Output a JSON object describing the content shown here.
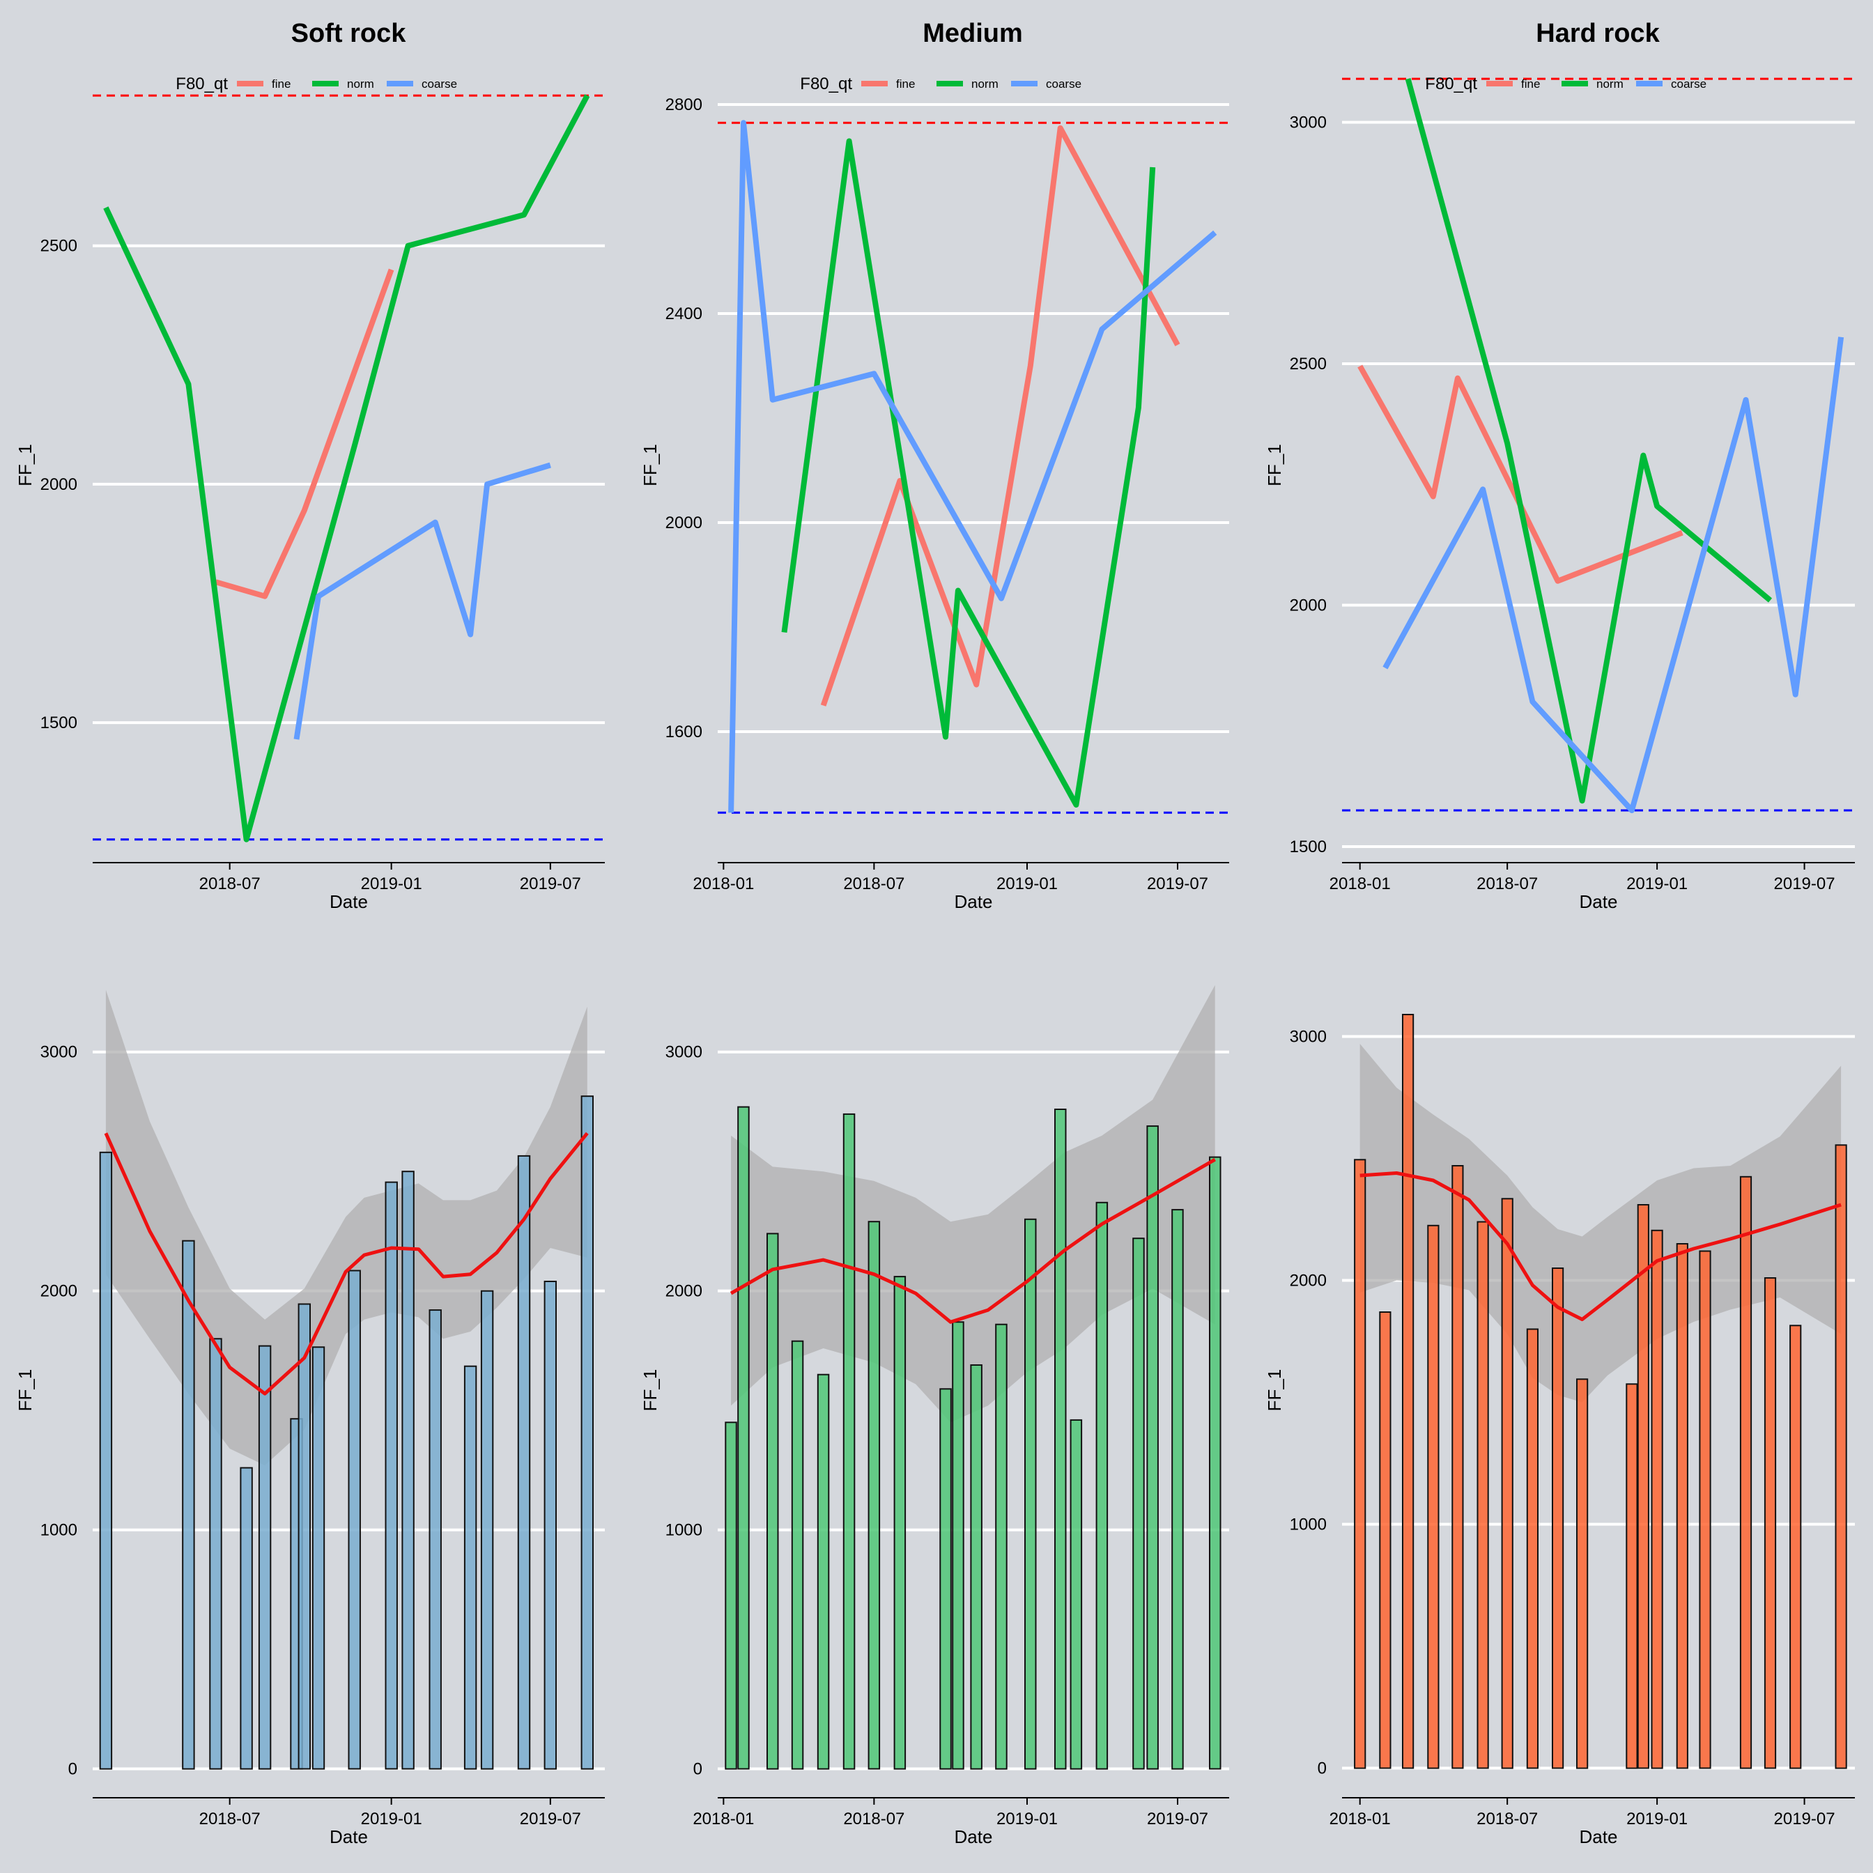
{
  "colors": {
    "background": "#d5d8dd",
    "grid": "#ffffff",
    "fine": "#f8766d",
    "norm": "#00ba38",
    "coarse": "#619cff",
    "upper_ref": "#ff0000",
    "lower_ref": "#0000ff",
    "smooth": "#ee1111",
    "ribbon": "#b0b0b0",
    "bar_soft": "#7aaed0",
    "bar_medium": "#50c878",
    "bar_hard": "#ff6633"
  },
  "chart_data": [
    {
      "panel": "top-left",
      "type": "line",
      "title": "Soft rock",
      "xlabel": "Date",
      "ylabel": "FF_1",
      "legend": {
        "title": "F80_qt",
        "entries": [
          "fine",
          "norm",
          "coarse"
        ],
        "placement": "top"
      },
      "x_ticks": [
        "2018-07",
        "2019-01",
        "2019-07"
      ],
      "y_ticks": [
        1500,
        2000,
        2500
      ],
      "xlim": [
        "2018-01-26",
        "2019-09-01"
      ],
      "ylim": [
        1240,
        2840
      ],
      "ref_lines": {
        "upper": 2815,
        "lower": 1255
      },
      "series": [
        {
          "name": "fine",
          "color_key": "fine",
          "x": [
            "2018-06-15",
            "2018-08-10",
            "2018-09-24",
            "2019-01-01"
          ],
          "y": [
            1795,
            1765,
            1945,
            2450
          ]
        },
        {
          "name": "norm",
          "color_key": "norm",
          "x": [
            "2018-02-10",
            "2018-05-15",
            "2018-07-20",
            "2018-11-20",
            "2019-01-20",
            "2019-06-01",
            "2019-08-12"
          ],
          "y": [
            2580,
            2210,
            1255,
            2080,
            2500,
            2565,
            2815
          ]
        },
        {
          "name": "coarse",
          "color_key": "coarse",
          "x": [
            "2018-09-15",
            "2018-10-10",
            "2019-02-20",
            "2019-04-01",
            "2019-04-20",
            "2019-07-01"
          ],
          "y": [
            1465,
            1765,
            1920,
            1685,
            2000,
            2040
          ]
        }
      ]
    },
    {
      "panel": "top-middle",
      "type": "line",
      "title": "Medium",
      "xlabel": "Date",
      "ylabel": "FF_1",
      "legend": {
        "title": "F80_qt",
        "entries": [
          "fine",
          "norm",
          "coarse"
        ],
        "placement": "top"
      },
      "x_ticks": [
        "2018-01",
        "2018-07",
        "2019-01",
        "2019-07"
      ],
      "y_ticks": [
        1600,
        2000,
        2400,
        2800
      ],
      "xlim": [
        "2017-12-25",
        "2019-09-01"
      ],
      "ylim": [
        1380,
        2840
      ],
      "ref_lines": {
        "upper": 2765,
        "lower": 1445
      },
      "series": [
        {
          "name": "fine",
          "color_key": "fine",
          "x": [
            "2018-05-01",
            "2018-08-01",
            "2018-11-01",
            "2019-01-05",
            "2019-02-10",
            "2019-07-01"
          ],
          "y": [
            1650,
            2080,
            1690,
            2300,
            2755,
            2340
          ]
        },
        {
          "name": "norm",
          "color_key": "norm",
          "x": [
            "2018-03-15",
            "2018-06-01",
            "2018-09-25",
            "2018-10-10",
            "2019-03-01",
            "2019-05-15",
            "2019-06-01"
          ],
          "y": [
            1790,
            2730,
            1590,
            1870,
            1460,
            2220,
            2680
          ]
        },
        {
          "name": "coarse",
          "color_key": "coarse",
          "x": [
            "2018-01-10",
            "2018-01-25",
            "2018-03-01",
            "2018-07-01",
            "2018-12-01",
            "2019-04-01",
            "2019-08-15"
          ],
          "y": [
            1445,
            2765,
            2235,
            2285,
            1855,
            2370,
            2555
          ]
        }
      ]
    },
    {
      "panel": "top-right",
      "type": "line",
      "title": "Hard rock",
      "xlabel": "Date",
      "ylabel": "FF_1",
      "legend": {
        "title": "F80_qt",
        "entries": [
          "fine",
          "norm",
          "coarse"
        ],
        "placement": "top"
      },
      "x_ticks": [
        "2018-01",
        "2018-07",
        "2019-01",
        "2019-07"
      ],
      "y_ticks": [
        1500,
        2000,
        2500,
        3000
      ],
      "xlim": [
        "2017-12-10",
        "2019-09-01"
      ],
      "ylim": [
        1500,
        3080
      ],
      "ref_lines": {
        "upper": 3090,
        "lower": 1575
      },
      "series": [
        {
          "name": "fine",
          "color_key": "fine",
          "x": [
            "2018-01-01",
            "2018-04-01",
            "2018-05-01",
            "2018-09-01",
            "2019-02-01"
          ],
          "y": [
            2495,
            2225,
            2470,
            2050,
            2150
          ]
        },
        {
          "name": "norm",
          "color_key": "norm",
          "x": [
            "2018-03-01",
            "2018-07-01",
            "2018-10-01",
            "2018-12-15",
            "2019-01-01",
            "2019-05-20"
          ],
          "y": [
            3090,
            2335,
            1595,
            2310,
            2205,
            2010
          ]
        },
        {
          "name": "coarse",
          "color_key": "coarse",
          "x": [
            "2018-02-01",
            "2018-06-01",
            "2018-08-01",
            "2018-12-01",
            "2019-04-20",
            "2019-06-20",
            "2019-08-15"
          ],
          "y": [
            1870,
            2240,
            1800,
            1575,
            2425,
            1815,
            2555
          ]
        }
      ]
    },
    {
      "panel": "bottom-left",
      "type": "bar",
      "title": "",
      "xlabel": "Date",
      "ylabel": "FF_1",
      "bar_color_key": "bar_soft",
      "x_ticks": [
        "2018-07",
        "2019-01",
        "2019-07"
      ],
      "y_ticks": [
        0,
        1000,
        2000,
        3000
      ],
      "xlim": [
        "2018-01-26",
        "2019-09-01"
      ],
      "ylim": [
        -150,
        3320
      ],
      "bars": {
        "x": [
          "2018-02-10",
          "2018-05-15",
          "2018-06-15",
          "2018-07-20",
          "2018-08-10",
          "2018-09-15",
          "2018-09-24",
          "2018-10-10",
          "2018-11-20",
          "2019-01-01",
          "2019-01-20",
          "2019-02-20",
          "2019-04-01",
          "2019-04-20",
          "2019-06-01",
          "2019-07-01",
          "2019-08-12"
        ],
        "values": [
          2580,
          2210,
          1800,
          1260,
          1770,
          1465,
          1945,
          1765,
          2085,
          2455,
          2500,
          1920,
          1685,
          2000,
          2565,
          2040,
          2815
        ]
      },
      "smooth": {
        "x": [
          "2018-02-10",
          "2018-04-01",
          "2018-05-15",
          "2018-07-01",
          "2018-08-10",
          "2018-09-24",
          "2018-11-10",
          "2018-12-01",
          "2019-01-01",
          "2019-02-01",
          "2019-03-01",
          "2019-04-01",
          "2019-05-01",
          "2019-06-01",
          "2019-07-01",
          "2019-08-12"
        ],
        "y": [
          2660,
          2250,
          1960,
          1680,
          1570,
          1720,
          2080,
          2150,
          2180,
          2175,
          2060,
          2070,
          2160,
          2300,
          2470,
          2660
        ],
        "lower": [
          2070,
          1800,
          1570,
          1340,
          1270,
          1420,
          1820,
          1880,
          1910,
          1890,
          1800,
          1830,
          1930,
          2050,
          2180,
          2140
        ],
        "upper": [
          3260,
          2710,
          2350,
          2010,
          1880,
          2010,
          2310,
          2390,
          2420,
          2450,
          2380,
          2380,
          2420,
          2560,
          2770,
          3190
        ]
      }
    },
    {
      "panel": "bottom-middle",
      "type": "bar",
      "title": "",
      "xlabel": "Date",
      "ylabel": "FF_1",
      "bar_color_key": "bar_medium",
      "x_ticks": [
        "2018-01",
        "2018-07",
        "2019-01",
        "2019-07"
      ],
      "y_ticks": [
        0,
        1000,
        2000,
        3000
      ],
      "xlim": [
        "2017-12-25",
        "2019-09-01"
      ],
      "ylim": [
        -150,
        3320
      ],
      "bars": {
        "x": [
          "2018-01-10",
          "2018-01-25",
          "2018-03-01",
          "2018-03-31",
          "2018-05-01",
          "2018-06-01",
          "2018-07-01",
          "2018-08-01",
          "2018-09-25",
          "2018-10-10",
          "2018-11-01",
          "2018-12-01",
          "2019-01-05",
          "2019-02-10",
          "2019-03-01",
          "2019-04-01",
          "2019-05-15",
          "2019-06-01",
          "2019-07-01",
          "2019-08-15"
        ],
        "values": [
          1450,
          2770,
          2240,
          1790,
          1650,
          2740,
          2290,
          2060,
          1590,
          1870,
          1690,
          1860,
          2300,
          2760,
          1460,
          2370,
          2220,
          2690,
          2340,
          2560
        ]
      },
      "smooth": {
        "x": [
          "2018-01-10",
          "2018-03-01",
          "2018-05-01",
          "2018-07-01",
          "2018-08-20",
          "2018-10-01",
          "2018-11-15",
          "2019-01-01",
          "2019-02-15",
          "2019-04-01",
          "2019-06-01",
          "2019-08-15"
        ],
        "y": [
          1990,
          2090,
          2130,
          2070,
          1990,
          1870,
          1920,
          2040,
          2170,
          2280,
          2400,
          2550
        ],
        "lower": [
          1520,
          1680,
          1760,
          1700,
          1610,
          1450,
          1520,
          1660,
          1760,
          1900,
          2010,
          1860
        ],
        "upper": [
          2650,
          2520,
          2500,
          2460,
          2390,
          2290,
          2320,
          2450,
          2580,
          2650,
          2800,
          3280
        ]
      }
    },
    {
      "panel": "bottom-right",
      "type": "bar",
      "title": "",
      "xlabel": "Date",
      "ylabel": "FF_1",
      "bar_color_key": "bar_hard",
      "x_ticks": [
        "2018-01",
        "2018-07",
        "2019-01",
        "2019-07"
      ],
      "y_ticks": [
        0,
        1000,
        2000,
        3000
      ],
      "xlim": [
        "2017-12-10",
        "2019-09-01"
      ],
      "ylim": [
        -150,
        3250
      ],
      "bars": {
        "x": [
          "2018-01-01",
          "2018-02-01",
          "2018-03-01",
          "2018-04-01",
          "2018-05-01",
          "2018-06-01",
          "2018-07-01",
          "2018-08-01",
          "2018-09-01",
          "2018-10-01",
          "2018-12-01",
          "2018-12-15",
          "2019-01-01",
          "2019-02-01",
          "2019-03-01",
          "2019-04-20",
          "2019-05-20",
          "2019-06-20",
          "2019-08-15"
        ],
        "values": [
          2495,
          1870,
          3090,
          2225,
          2470,
          2240,
          2335,
          1800,
          2050,
          1595,
          1575,
          2310,
          2205,
          2150,
          2120,
          2425,
          2010,
          1815,
          2555
        ]
      },
      "smooth": {
        "x": [
          "2018-01-01",
          "2018-02-15",
          "2018-04-01",
          "2018-05-15",
          "2018-07-01",
          "2018-08-01",
          "2018-09-01",
          "2018-10-01",
          "2018-11-01",
          "2019-01-01",
          "2019-02-15",
          "2019-04-01",
          "2019-06-01",
          "2019-08-15"
        ],
        "y": [
          2430,
          2440,
          2410,
          2330,
          2150,
          1980,
          1890,
          1840,
          1920,
          2080,
          2130,
          2170,
          2230,
          2310
        ],
        "lower": [
          1950,
          2000,
          1990,
          1960,
          1780,
          1600,
          1530,
          1500,
          1610,
          1760,
          1830,
          1880,
          1930,
          1780
        ],
        "upper": [
          2970,
          2790,
          2680,
          2580,
          2430,
          2300,
          2210,
          2180,
          2260,
          2410,
          2460,
          2470,
          2590,
          2880
        ]
      }
    }
  ]
}
